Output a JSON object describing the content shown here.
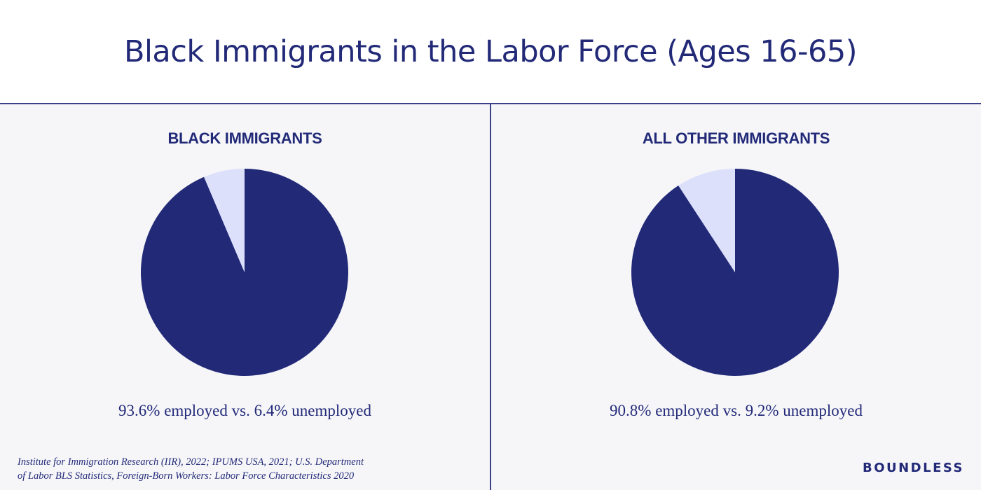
{
  "header": {
    "title": "Black Immigrants in the Labor Force (Ages 16-65)"
  },
  "colors": {
    "employed": "#222a78",
    "unemployed": "#dce0fb",
    "background": "#f6f6f9",
    "text": "#222a78"
  },
  "panels": [
    {
      "title": "BLACK IMMIGRANTS",
      "caption": "93.6% employed vs. 6.4% unemployed"
    },
    {
      "title": "ALL OTHER IMMIGRANTS",
      "caption": "90.8% employed vs. 9.2% unemployed"
    }
  ],
  "chart_data": [
    {
      "type": "pie",
      "title": "BLACK IMMIGRANTS",
      "categories": [
        "employed",
        "unemployed"
      ],
      "values": [
        93.6,
        6.4
      ]
    },
    {
      "type": "pie",
      "title": "ALL OTHER IMMIGRANTS",
      "categories": [
        "employed",
        "unemployed"
      ],
      "values": [
        90.8,
        9.2
      ]
    }
  ],
  "footer": {
    "source_line1": "Institute for Immigration Research (IIR), 2022; IPUMS USA, 2021; U.S. Department",
    "source_line2": "of Labor BLS Statistics, Foreign-Born Workers: Labor Force Characteristics 2020",
    "brand": "BOUNDLESS"
  }
}
